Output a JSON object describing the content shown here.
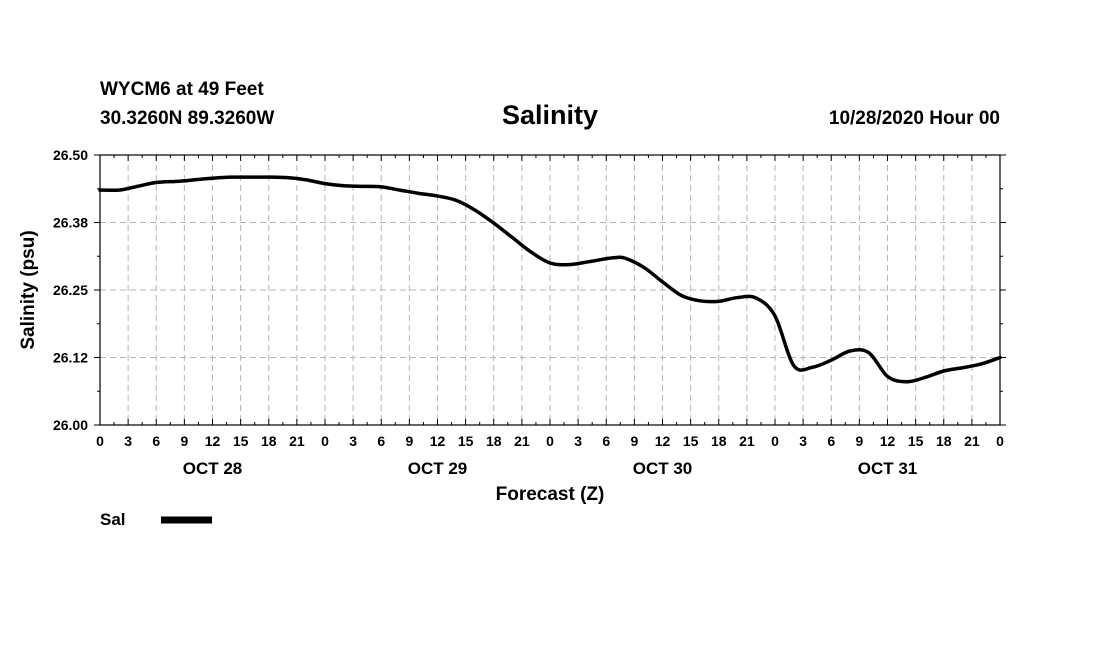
{
  "header": {
    "station": "WYCM6 at 49 Feet",
    "coords": "30.3260N 89.3260W",
    "datetime": "10/28/2020 Hour 00"
  },
  "chart_data": {
    "type": "line",
    "title": "Salinity",
    "xlabel": "Forecast (Z)",
    "ylabel": "Salinity (psu)",
    "ylim": [
      26.0,
      26.5
    ],
    "xlim": [
      0,
      96
    ],
    "x_unit": "hours from 10/28/2020 00Z",
    "grid": true,
    "y_ticks": [
      {
        "value": 26.5,
        "label": "26.50"
      },
      {
        "value": 26.375,
        "label": "26.38"
      },
      {
        "value": 26.25,
        "label": "26.25"
      },
      {
        "value": 26.125,
        "label": "26.12"
      },
      {
        "value": 26.0,
        "label": "26.00"
      }
    ],
    "x_tick_labels": [
      "0",
      "3",
      "6",
      "9",
      "12",
      "15",
      "18",
      "21",
      "0",
      "3",
      "6",
      "9",
      "12",
      "15",
      "18",
      "21",
      "0",
      "3",
      "6",
      "9",
      "12",
      "15",
      "18",
      "21",
      "0",
      "3",
      "6",
      "9",
      "12",
      "15",
      "18",
      "21",
      "0"
    ],
    "day_labels": [
      {
        "x": 12,
        "label": "OCT 28"
      },
      {
        "x": 36,
        "label": "OCT 29"
      },
      {
        "x": 60,
        "label": "OCT 30"
      },
      {
        "x": 84,
        "label": "OCT 31"
      }
    ],
    "legend": {
      "position": "bottom-left",
      "entries": [
        {
          "label": "Sal",
          "color": "#000000"
        }
      ]
    },
    "series": [
      {
        "name": "Sal",
        "color": "#000000",
        "x": [
          0,
          2,
          3,
          4,
          6,
          8,
          9,
          10,
          12,
          14,
          16,
          18,
          20,
          22,
          24,
          26,
          28,
          30,
          32,
          34,
          36,
          38,
          40,
          42,
          44,
          46,
          48,
          50,
          52,
          54,
          55,
          56,
          58,
          60,
          62,
          64,
          66,
          68,
          70,
          72,
          74,
          76,
          78,
          80,
          82,
          84,
          86,
          88,
          90,
          92,
          94,
          96
        ],
        "y": [
          26.435,
          26.435,
          26.438,
          26.442,
          26.449,
          26.451,
          26.452,
          26.454,
          26.457,
          26.459,
          26.459,
          26.459,
          26.458,
          26.454,
          26.447,
          26.443,
          26.442,
          26.441,
          26.435,
          26.429,
          26.424,
          26.416,
          26.398,
          26.374,
          26.347,
          26.32,
          26.3,
          26.297,
          26.302,
          26.308,
          26.31,
          26.309,
          26.292,
          26.265,
          26.24,
          26.23,
          26.229,
          26.236,
          26.235,
          26.202,
          26.11,
          26.107,
          26.12,
          26.137,
          26.134,
          26.09,
          26.08,
          26.088,
          26.1,
          26.106,
          26.113,
          26.125
        ]
      }
    ]
  }
}
